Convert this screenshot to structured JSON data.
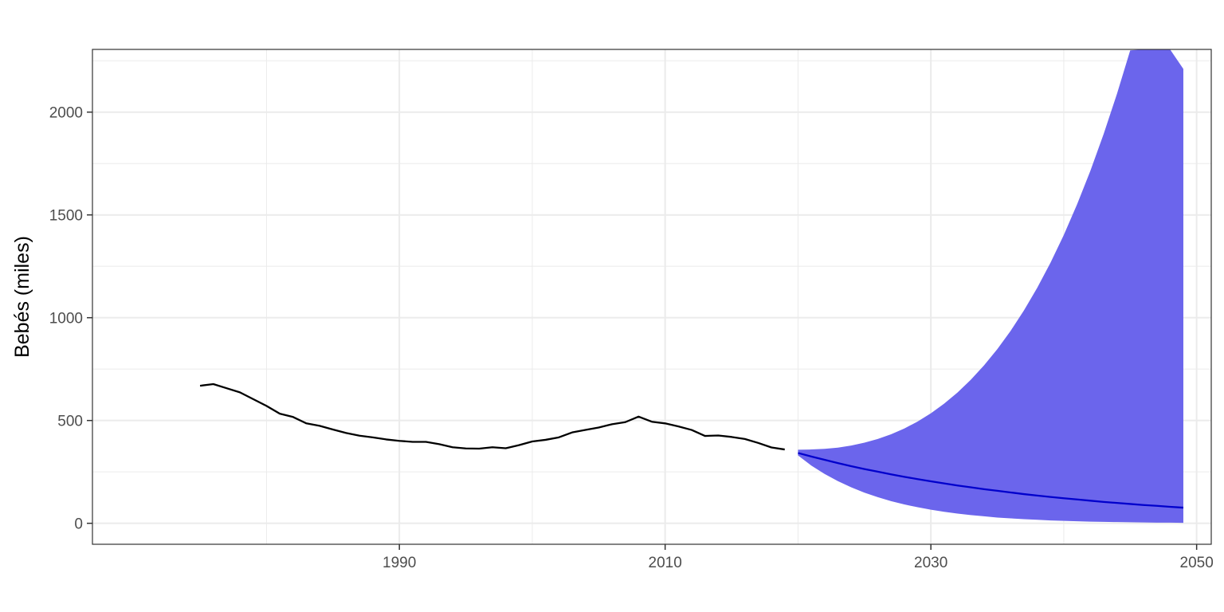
{
  "chart_data": {
    "type": "line",
    "title": "",
    "xlabel": "",
    "ylabel": "Bebés (miles)",
    "xlim": [
      1966.9,
      2051.1
    ],
    "ylim": [
      -102,
      2305
    ],
    "x_ticks": [
      1990,
      2010,
      2030,
      2050
    ],
    "y_ticks": [
      0,
      500,
      1000,
      1500,
      2000
    ],
    "x_ticks_labels": [
      "1990",
      "2010",
      "2030",
      "2050"
    ],
    "y_ticks_labels": [
      "0",
      "500",
      "1000",
      "1500",
      "2000"
    ],
    "grid": true,
    "legend": "none",
    "colors": {
      "historical": "#000000",
      "forecast": "#0000cc",
      "interval": "#6b65ec",
      "grid": "#ebebeb",
      "panel_border": "#333333"
    },
    "historical": {
      "x": [
        1975,
        1976,
        1977,
        1978,
        1979,
        1980,
        1981,
        1982,
        1983,
        1984,
        1985,
        1986,
        1987,
        1988,
        1989,
        1990,
        1991,
        1992,
        1993,
        1994,
        1995,
        1996,
        1997,
        1998,
        1999,
        2000,
        2001,
        2002,
        2003,
        2004,
        2005,
        2006,
        2007,
        2008,
        2009,
        2010,
        2011,
        2012,
        2013,
        2014,
        2015,
        2016,
        2017,
        2018,
        2019
      ],
      "y": [
        669,
        677,
        657,
        637,
        604,
        571,
        533,
        517,
        486,
        474,
        456,
        439,
        426,
        418,
        408,
        401,
        396,
        396,
        385,
        370,
        364,
        363,
        370,
        365,
        380,
        398,
        406,
        418,
        442,
        454,
        466,
        482,
        492,
        519,
        494,
        486,
        471,
        454,
        425,
        427,
        420,
        410,
        391,
        369,
        359
      ]
    },
    "forecast": {
      "x": [
        2020,
        2021,
        2022,
        2023,
        2024,
        2025,
        2026,
        2027,
        2028,
        2029,
        2030,
        2031,
        2032,
        2033,
        2034,
        2035,
        2036,
        2037,
        2038,
        2039,
        2040,
        2041,
        2042,
        2043,
        2044,
        2045,
        2046,
        2047,
        2048,
        2049
      ],
      "y": [
        342,
        325,
        309,
        293,
        278,
        264,
        251,
        238,
        226,
        215,
        204,
        194,
        184,
        175,
        166,
        158,
        150,
        142,
        135,
        128,
        122,
        116,
        110,
        104,
        99,
        94,
        89,
        85,
        80,
        76
      ],
      "lower": [
        330,
        281,
        240,
        205,
        175,
        149,
        127,
        108,
        92,
        78,
        66,
        56,
        47,
        40,
        34,
        28,
        24,
        20,
        17,
        14,
        12,
        10,
        8,
        7,
        6,
        5,
        4,
        3,
        3,
        2
      ],
      "upper": [
        358,
        359,
        362,
        368,
        378,
        392,
        410,
        433,
        461,
        495,
        535,
        582,
        636,
        698,
        768,
        847,
        936,
        1035,
        1145,
        1267,
        1402,
        1551,
        1714,
        1893,
        2088,
        2300,
        2530,
        2779,
        3049,
        2210
      ]
    }
  }
}
